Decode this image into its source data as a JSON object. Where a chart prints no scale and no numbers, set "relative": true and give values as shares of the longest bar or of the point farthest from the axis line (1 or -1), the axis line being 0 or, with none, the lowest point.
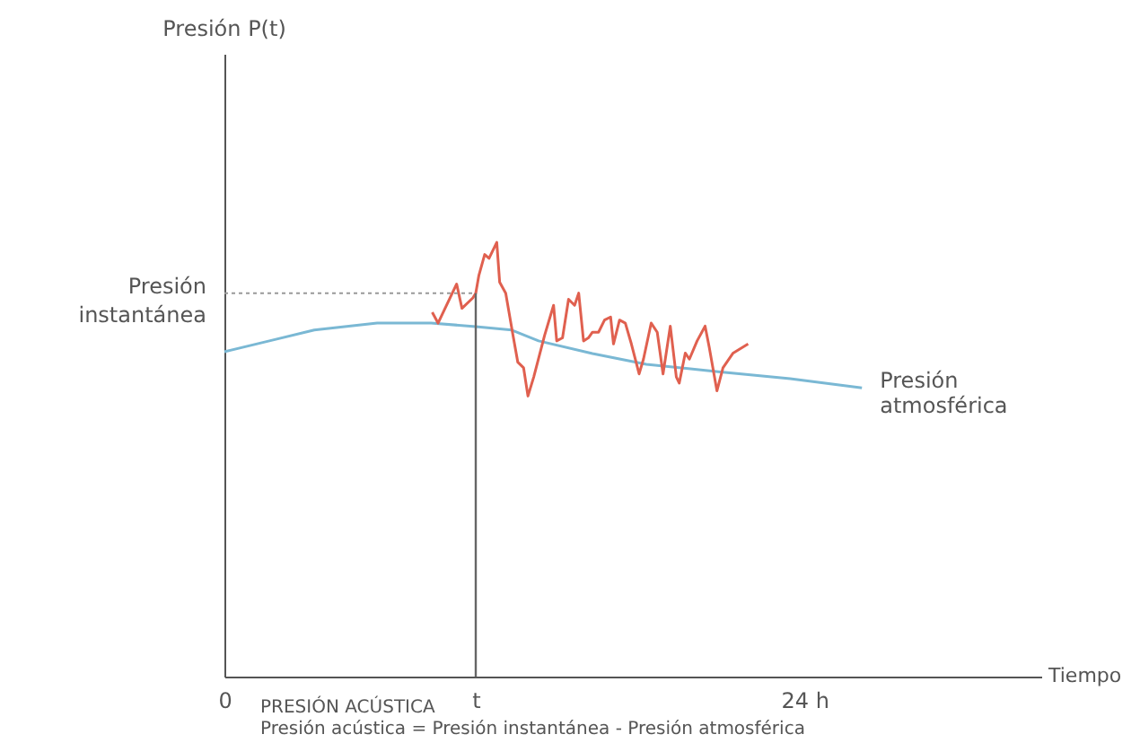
{
  "chart_data": {
    "type": "line",
    "relative": true,
    "xlabel": "Tiempo",
    "xlim": [
      0,
      33.8
    ],
    "xticks": [
      0,
      {
        "value": 10.4,
        "label": "t"
      },
      {
        "value": 24,
        "label": "24 h"
      }
    ],
    "series": [
      {
        "name": "Presión atmosférica",
        "color": "#7ab8d4",
        "x": [
          0,
          1.86,
          3.72,
          6.32,
          8.55,
          10.4,
          11.89,
          13.0,
          15.23,
          17.46,
          20.43,
          23.41,
          26.38
        ],
        "values": [
          0.748,
          0.773,
          0.798,
          0.814,
          0.814,
          0.806,
          0.798,
          0.773,
          0.744,
          0.719,
          0.702,
          0.686,
          0.665
        ]
      },
      {
        "color": "#e0604f",
        "x": [
          8.6,
          8.84,
          9.61,
          9.83,
          10.28,
          10.4,
          10.53,
          10.77,
          10.95,
          11.27,
          11.39,
          11.64,
          11.94,
          12.14,
          12.38,
          12.56,
          12.8,
          13.25,
          13.62,
          13.75,
          13.99,
          14.24,
          14.49,
          14.66,
          14.86,
          15.06,
          15.23,
          15.48,
          15.73,
          15.98,
          16.1,
          16.35,
          16.59,
          16.84,
          17.16,
          17.34,
          17.66,
          17.91,
          18.15,
          18.45,
          18.7,
          18.82,
          19.07,
          19.24,
          19.56,
          19.89,
          20.06,
          20.38,
          20.63,
          21.05,
          21.67
        ],
        "values": [
          0.839,
          0.814,
          0.904,
          0.848,
          0.872,
          0.883,
          0.924,
          0.972,
          0.963,
          1.0,
          0.908,
          0.883,
          0.786,
          0.724,
          0.711,
          0.646,
          0.69,
          0.786,
          0.855,
          0.773,
          0.78,
          0.869,
          0.855,
          0.883,
          0.773,
          0.78,
          0.793,
          0.793,
          0.821,
          0.828,
          0.766,
          0.821,
          0.814,
          0.766,
          0.697,
          0.731,
          0.814,
          0.793,
          0.697,
          0.807,
          0.69,
          0.676,
          0.745,
          0.731,
          0.773,
          0.807,
          0.759,
          0.658,
          0.711,
          0.745,
          0.766
        ]
      }
    ],
    "ref_lines": [
      {
        "axis": "y",
        "value": 0.883,
        "label": "Presión instantánea",
        "color": "#999999",
        "line_style": "dotted"
      },
      {
        "axis": "x",
        "value": 10.4,
        "color": "#666666",
        "line_style": "solid"
      }
    ],
    "annotations": [
      "Presión P(t)",
      "PRESIÓN ACÚSTICA",
      "Presión acústica = Presión instantánea - Presión atmosférica"
    ],
    "grid": false
  }
}
